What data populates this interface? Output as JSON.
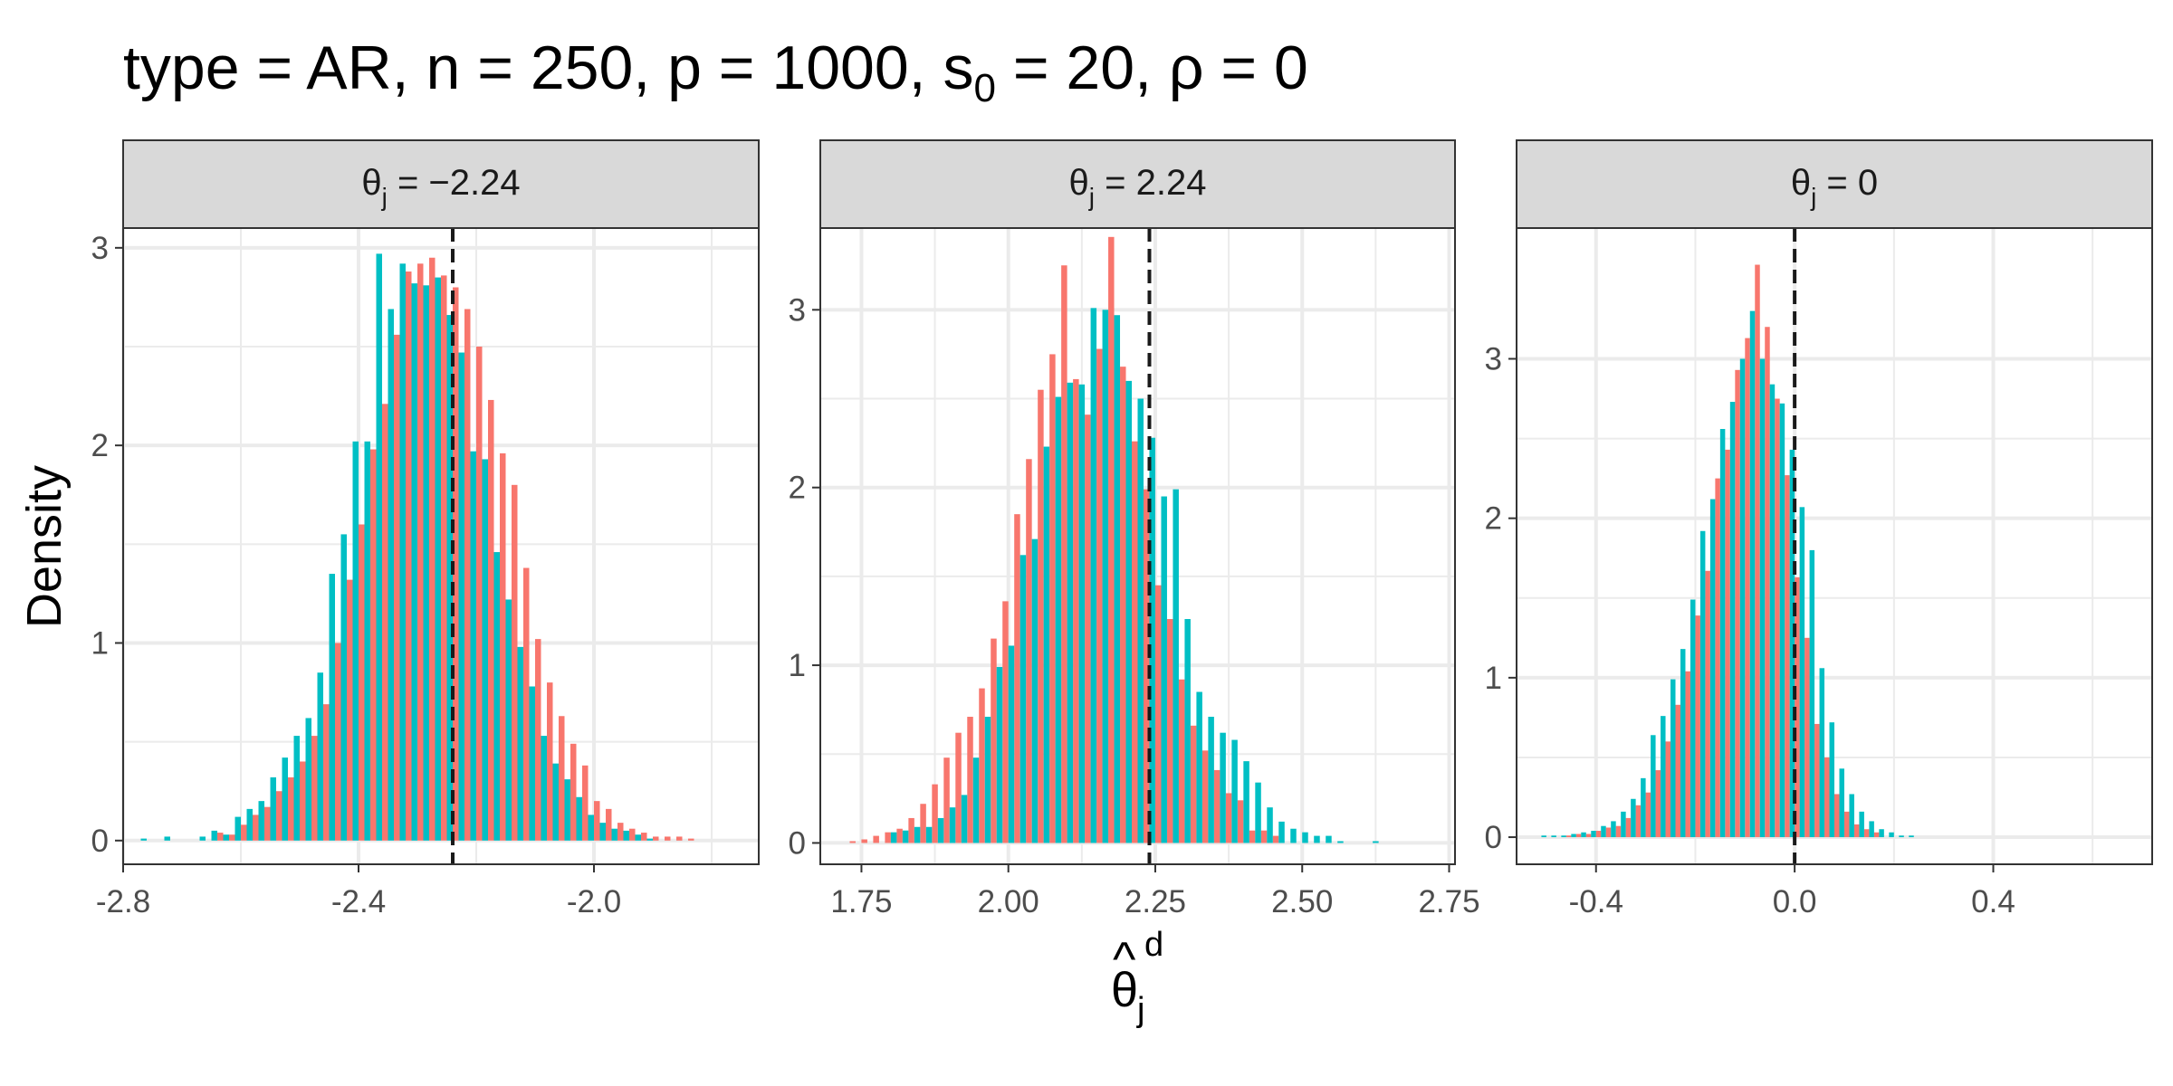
{
  "chart_data": {
    "type": "bar",
    "title": {
      "prefix": "type = AR, n = 250, p = 1000, s",
      "sub": "0",
      "suffix": " = 20, ρ = 0"
    },
    "xlabel": {
      "main": "θ",
      "hat": "^",
      "sub": "j",
      "sup": "d"
    },
    "ylabel": "Density",
    "grid": true,
    "legend": "none",
    "colors": {
      "series_a": "#F8766D",
      "series_b": "#00BFC4",
      "vline": "#1a1a1a",
      "strip_bg": "#d9d9d9"
    },
    "panels": [
      {
        "strip": {
          "main": "θ",
          "sub": "j",
          "suffix": " = −2.24"
        },
        "true_value": -2.24,
        "xlim": [
          -2.8,
          -1.72
        ],
        "ylim": [
          -0.12,
          3.1
        ],
        "x_ticks": [
          -2.8,
          -2.4,
          -2.0
        ],
        "x_tick_labels": [
          "-2.8",
          "-2.4",
          "-2.0"
        ],
        "y_ticks": [
          0,
          1,
          2,
          3
        ],
        "y_tick_labels": [
          "0",
          "1",
          "2",
          "3"
        ],
        "bin_width": 0.02,
        "bin_start": -2.77,
        "series_a": [
          0.0,
          0.0,
          0.0,
          0.0,
          0.0,
          0.0,
          0.04,
          0.03,
          0.08,
          0.13,
          0.17,
          0.25,
          0.32,
          0.4,
          0.53,
          0.69,
          1.0,
          1.32,
          1.6,
          1.98,
          2.21,
          2.56,
          2.88,
          2.92,
          2.95,
          2.86,
          2.8,
          2.69,
          2.5,
          2.23,
          1.96,
          1.8,
          1.38,
          1.02,
          0.8,
          0.63,
          0.49,
          0.38,
          0.2,
          0.16,
          0.09,
          0.06,
          0.04,
          0.02,
          0.02,
          0.02,
          0.01
        ],
        "series_b": [
          0.01,
          0.0,
          0.02,
          0.0,
          0.0,
          0.02,
          0.05,
          0.03,
          0.12,
          0.16,
          0.2,
          0.32,
          0.42,
          0.53,
          0.62,
          0.85,
          1.35,
          1.55,
          2.02,
          2.02,
          2.97,
          2.69,
          2.92,
          2.82,
          2.81,
          2.85,
          2.66,
          2.47,
          1.97,
          1.93,
          1.46,
          1.22,
          0.98,
          0.78,
          0.53,
          0.39,
          0.31,
          0.22,
          0.13,
          0.09,
          0.06,
          0.05,
          0.03,
          0.01,
          0.0,
          0.0,
          0.0
        ]
      },
      {
        "strip": {
          "main": "θ",
          "sub": "j",
          "suffix": " = 2.24"
        },
        "true_value": 2.24,
        "xlim": [
          1.68,
          2.76
        ],
        "ylim": [
          -0.12,
          3.46
        ],
        "x_ticks": [
          1.75,
          2.0,
          2.25,
          2.5,
          2.75
        ],
        "x_tick_labels": [
          "1.75",
          "2.00",
          "2.25",
          "2.50",
          "2.75"
        ],
        "y_ticks": [
          0,
          1,
          2,
          3
        ],
        "y_tick_labels": [
          "0",
          "1",
          "2",
          "3"
        ],
        "bin_width": 0.02,
        "bin_start": 1.72,
        "series_a": [
          0.01,
          0.02,
          0.04,
          0.06,
          0.08,
          0.14,
          0.22,
          0.33,
          0.48,
          0.62,
          0.71,
          0.87,
          1.15,
          1.36,
          1.85,
          2.16,
          2.55,
          2.75,
          3.25,
          2.61,
          2.41,
          2.78,
          3.41,
          2.68,
          2.26,
          1.99,
          1.45,
          1.26,
          0.92,
          0.66,
          0.52,
          0.41,
          0.28,
          0.24,
          0.07,
          0.07,
          0.04,
          0.0,
          0.0,
          0.0,
          0.0,
          0.0,
          0.0,
          0.0,
          0.0,
          0.0,
          0.0,
          0.0,
          0.0
        ],
        "series_b": [
          0.0,
          0.0,
          0.0,
          0.0,
          0.06,
          0.07,
          0.09,
          0.09,
          0.14,
          0.2,
          0.27,
          0.48,
          0.71,
          0.99,
          1.11,
          1.62,
          1.71,
          2.23,
          2.51,
          2.59,
          2.58,
          3.01,
          3.0,
          2.97,
          2.6,
          2.5,
          2.28,
          1.95,
          1.99,
          1.26,
          0.85,
          0.71,
          0.62,
          0.58,
          0.46,
          0.34,
          0.2,
          0.12,
          0.08,
          0.06,
          0.04,
          0.04,
          0.01,
          0.0,
          0.0,
          0.01,
          0.0,
          0.0,
          0.0
        ]
      },
      {
        "strip": {
          "main": "θ",
          "sub": "j",
          "suffix": " = 0"
        },
        "true_value": 0,
        "xlim": [
          -0.56,
          0.72
        ],
        "ylim": [
          -0.17,
          3.82
        ],
        "x_ticks": [
          -0.4,
          0.0,
          0.4
        ],
        "x_tick_labels": [
          "-0.4",
          "0.0",
          "0.4"
        ],
        "y_ticks": [
          0,
          1,
          2,
          3
        ],
        "y_tick_labels": [
          "0",
          "1",
          "2",
          "3"
        ],
        "bin_width": 0.02,
        "bin_start": -0.51,
        "series_a": [
          0.0,
          0.0,
          0.01,
          0.02,
          0.02,
          0.04,
          0.06,
          0.07,
          0.12,
          0.2,
          0.28,
          0.42,
          0.6,
          0.83,
          1.04,
          1.39,
          1.67,
          2.25,
          2.43,
          2.93,
          3.13,
          3.59,
          3.2,
          2.75,
          2.27,
          1.63,
          1.25,
          0.71,
          0.5,
          0.27,
          0.16,
          0.08,
          0.05,
          0.03,
          0.0,
          0.0,
          0.0,
          0.0,
          0.0,
          0.0,
          0.0,
          0.0,
          0.0
        ],
        "series_b": [
          0.01,
          0.01,
          0.01,
          0.02,
          0.03,
          0.04,
          0.07,
          0.1,
          0.16,
          0.24,
          0.37,
          0.64,
          0.76,
          0.99,
          1.18,
          1.49,
          1.92,
          2.12,
          2.56,
          2.73,
          3.0,
          3.3,
          3.0,
          2.84,
          2.72,
          2.43,
          2.07,
          1.8,
          1.06,
          0.72,
          0.43,
          0.27,
          0.16,
          0.1,
          0.05,
          0.03,
          0.01,
          0.01,
          0.0,
          0.0,
          0.0,
          0.0,
          0.0
        ]
      }
    ]
  }
}
